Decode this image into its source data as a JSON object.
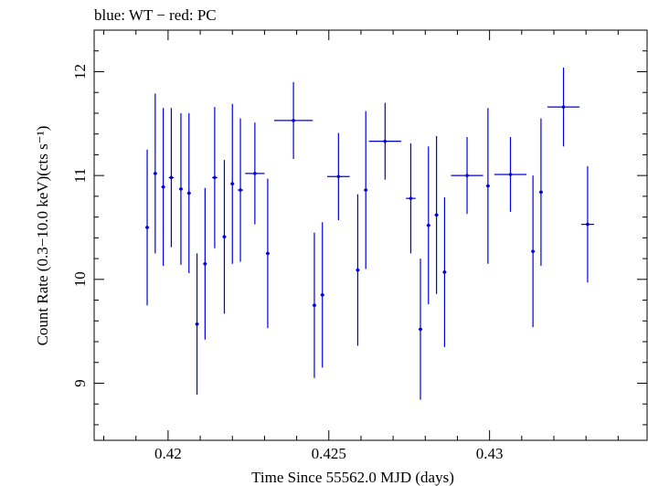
{
  "chart_data": {
    "type": "scatter",
    "title": "blue: WT − red: PC",
    "xlabel": "Time Since 55562.0 MJD (days)",
    "ylabel": "Count Rate (0.3−10.0 keV)(cts s⁻¹)",
    "xlim": [
      0.4177,
      0.4349
    ],
    "ylim": [
      8.45,
      12.4
    ],
    "x_ticks": [
      0.42,
      0.425,
      0.43
    ],
    "x_tick_labels": [
      "0.42",
      "0.425",
      "0.43"
    ],
    "y_ticks": [
      9,
      10,
      11,
      12
    ],
    "y_tick_labels": [
      "9",
      "10",
      "11",
      "12"
    ],
    "grid": false,
    "colors": {
      "WT": "#0000dd"
    },
    "series": [
      {
        "name": "WT",
        "color": "#0000dd",
        "points": [
          {
            "x": 0.41935,
            "xerr": 6e-05,
            "y": 10.5,
            "yerr": 0.75
          },
          {
            "x": 0.4196,
            "xerr": 6e-05,
            "y": 11.02,
            "yerr": 0.77
          },
          {
            "x": 0.41985,
            "xerr": 6e-05,
            "y": 10.89,
            "yerr": 0.76
          },
          {
            "x": 0.4201,
            "xerr": 8e-05,
            "y": 10.98,
            "yerr": 0.67
          },
          {
            "x": 0.4204,
            "xerr": 6e-05,
            "y": 10.87,
            "yerr": 0.73
          },
          {
            "x": 0.42065,
            "xerr": 6e-05,
            "y": 10.83,
            "yerr": 0.77
          },
          {
            "x": 0.4209,
            "xerr": 6e-05,
            "y": 9.57,
            "yerr": 0.68
          },
          {
            "x": 0.42115,
            "xerr": 6e-05,
            "y": 10.15,
            "yerr": 0.73
          },
          {
            "x": 0.42145,
            "xerr": 8e-05,
            "y": 10.98,
            "yerr": 0.68
          },
          {
            "x": 0.42175,
            "xerr": 6e-05,
            "y": 10.41,
            "yerr": 0.74
          },
          {
            "x": 0.422,
            "xerr": 6e-05,
            "y": 10.92,
            "yerr": 0.77
          },
          {
            "x": 0.42225,
            "xerr": 8e-05,
            "y": 10.86,
            "yerr": 0.69
          },
          {
            "x": 0.4227,
            "xerr": 0.0003,
            "y": 11.02,
            "yerr": 0.49
          },
          {
            "x": 0.4231,
            "xerr": 6e-05,
            "y": 10.25,
            "yerr": 0.72
          },
          {
            "x": 0.4239,
            "xerr": 0.0006,
            "y": 11.53,
            "yerr": 0.37
          },
          {
            "x": 0.42455,
            "xerr": 6e-05,
            "y": 9.75,
            "yerr": 0.7
          },
          {
            "x": 0.4248,
            "xerr": 6e-05,
            "y": 9.85,
            "yerr": 0.7
          },
          {
            "x": 0.4253,
            "xerr": 0.00035,
            "y": 10.99,
            "yerr": 0.42
          },
          {
            "x": 0.4259,
            "xerr": 6e-05,
            "y": 10.09,
            "yerr": 0.73
          },
          {
            "x": 0.42615,
            "xerr": 6e-05,
            "y": 10.86,
            "yerr": 0.76
          },
          {
            "x": 0.42675,
            "xerr": 0.0005,
            "y": 11.33,
            "yerr": 0.37
          },
          {
            "x": 0.42755,
            "xerr": 0.00015,
            "y": 10.78,
            "yerr": 0.53
          },
          {
            "x": 0.42785,
            "xerr": 6e-05,
            "y": 9.52,
            "yerr": 0.68
          },
          {
            "x": 0.4281,
            "xerr": 6e-05,
            "y": 10.52,
            "yerr": 0.76
          },
          {
            "x": 0.42835,
            "xerr": 6e-05,
            "y": 10.62,
            "yerr": 0.76
          },
          {
            "x": 0.4286,
            "xerr": 6e-05,
            "y": 10.07,
            "yerr": 0.72
          },
          {
            "x": 0.4293,
            "xerr": 0.0005,
            "y": 11.0,
            "yerr": 0.37
          },
          {
            "x": 0.42995,
            "xerr": 6e-05,
            "y": 10.9,
            "yerr": 0.75
          },
          {
            "x": 0.43065,
            "xerr": 0.0005,
            "y": 11.01,
            "yerr": 0.36
          },
          {
            "x": 0.43135,
            "xerr": 6e-05,
            "y": 10.27,
            "yerr": 0.73
          },
          {
            "x": 0.4316,
            "xerr": 6e-05,
            "y": 10.84,
            "yerr": 0.71
          },
          {
            "x": 0.4323,
            "xerr": 0.0005,
            "y": 11.66,
            "yerr": 0.38
          },
          {
            "x": 0.43305,
            "xerr": 0.0002,
            "y": 10.53,
            "yerr": 0.56
          }
        ]
      }
    ]
  }
}
